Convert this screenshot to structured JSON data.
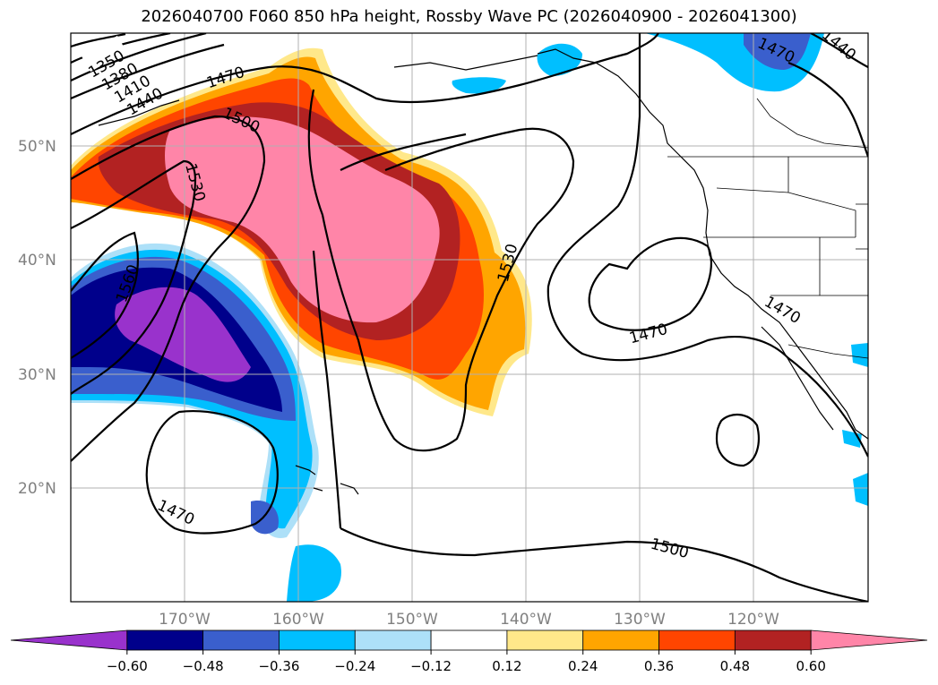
{
  "title": "2026040700 F060 850 hPa height, Rossby Wave PC (2026040900 - 2026041300)",
  "lat_labels": [
    "50°N",
    "40°N",
    "30°N",
    "20°N"
  ],
  "lon_labels": [
    "170°W",
    "160°W",
    "150°W",
    "140°W",
    "130°W",
    "120°W"
  ],
  "contour_labels": [
    "1350",
    "1380",
    "1410",
    "1440",
    "1470",
    "1500",
    "1530",
    "1560",
    "1530",
    "1470",
    "1470",
    "1470",
    "1500",
    "1470",
    "1440"
  ],
  "colorbar": {
    "ticks": [
      "−0.60",
      "−0.48",
      "−0.36",
      "−0.24",
      "−0.12",
      "0.12",
      "0.24",
      "0.36",
      "0.48",
      "0.60"
    ],
    "colors": [
      "#9932CC",
      "#00008B",
      "#3A5FCD",
      "#00BFFF",
      "#ADE0F8",
      "#FFFFFF",
      "#FFE88A",
      "#FFA500",
      "#FF4500",
      "#B22222",
      "#FF85A8"
    ]
  }
}
